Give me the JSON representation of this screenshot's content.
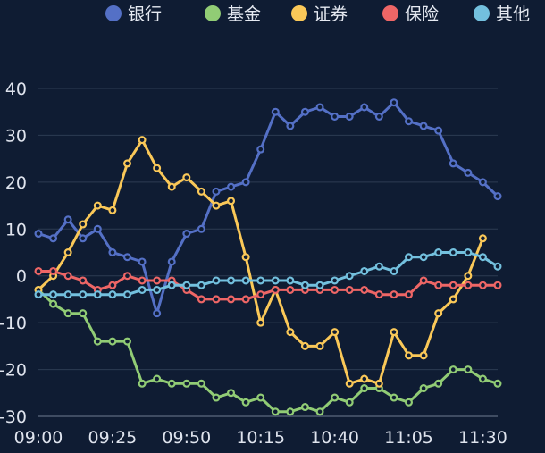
{
  "chart_data": {
    "type": "line",
    "title": "",
    "xlabel": "",
    "ylabel": "",
    "ylim": [
      -30,
      40
    ],
    "grid": true,
    "legend_position": "top-right",
    "x": [
      "09:00",
      "09:05",
      "09:10",
      "09:15",
      "09:20",
      "09:25",
      "09:30",
      "09:35",
      "09:40",
      "09:45",
      "09:50",
      "09:55",
      "10:00",
      "10:05",
      "10:10",
      "10:15",
      "10:20",
      "10:25",
      "10:30",
      "10:35",
      "10:40",
      "10:45",
      "10:50",
      "10:55",
      "11:00",
      "11:05",
      "11:10",
      "11:15",
      "11:20",
      "11:25",
      "11:30",
      "11:35"
    ],
    "x_tick_labels": [
      "09:00",
      "09:25",
      "09:50",
      "10:15",
      "10:40",
      "11:05",
      "11:30"
    ],
    "y_ticks": [
      -30,
      -20,
      -10,
      0,
      10,
      20,
      30,
      40
    ],
    "series": [
      {
        "name": "银行",
        "color": "#5470c6",
        "values": [
          9,
          8,
          12,
          8,
          10,
          5,
          4,
          3,
          -8,
          3,
          9,
          10,
          18,
          19,
          20,
          27,
          35,
          32,
          35,
          36,
          34,
          34,
          36,
          34,
          37,
          33,
          32,
          31,
          24,
          22,
          20,
          17
        ]
      },
      {
        "name": "基金",
        "color": "#91cc75",
        "values": [
          -3,
          -6,
          -8,
          -8,
          -14,
          -14,
          -14,
          -23,
          -22,
          -23,
          -23,
          -23,
          -26,
          -25,
          -27,
          -26,
          -29,
          -29,
          -28,
          -29,
          -26,
          -27,
          -24,
          -24,
          -26,
          -27,
          -24,
          -23,
          -20,
          -20,
          -22,
          -23
        ]
      },
      {
        "name": "证券",
        "color": "#fac858",
        "values": [
          -3,
          0,
          5,
          11,
          15,
          14,
          24,
          29,
          23,
          19,
          21,
          18,
          15,
          16,
          4,
          -10,
          -3,
          -12,
          -15,
          -15,
          -12,
          -23,
          -22,
          -23,
          -12,
          -17,
          -17,
          -8,
          -5,
          0,
          8,
          null
        ]
      },
      {
        "name": "保险",
        "color": "#ee6666",
        "values": [
          1,
          1,
          0,
          -1,
          -3,
          -2,
          0,
          -1,
          -1,
          -1,
          -3,
          -5,
          -5,
          -5,
          -5,
          -4,
          -3,
          -3,
          -3,
          -3,
          -3,
          -3,
          -3,
          -4,
          -4,
          -4,
          -1,
          -2,
          -2,
          -2,
          -2,
          -2
        ]
      },
      {
        "name": "其他",
        "color": "#73c0de",
        "values": [
          -4,
          -4,
          -4,
          -4,
          -4,
          -4,
          -4,
          -3,
          -3,
          -2,
          -2,
          -2,
          -1,
          -1,
          -1,
          -1,
          -1,
          -1,
          -2,
          -2,
          -1,
          0,
          1,
          2,
          1,
          4,
          4,
          5,
          5,
          5,
          4,
          2
        ]
      }
    ]
  }
}
